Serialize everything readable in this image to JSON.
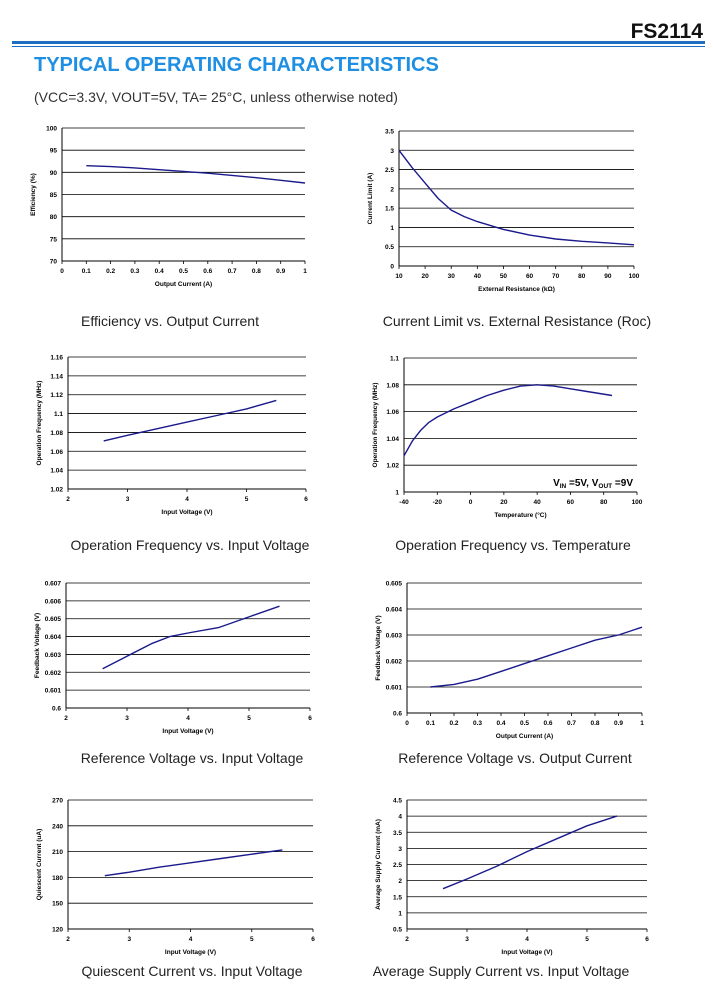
{
  "header": {
    "part_number": "FS2114",
    "section_title": "TYPICAL OPERATING CHARACTERISTICS",
    "conditions": "(VCC=3.3V, VOUT=5V, TA= 25°C, unless otherwise noted)"
  },
  "chart_data": [
    {
      "type": "line",
      "caption": "Efficiency vs. Output Current",
      "xlabel": "Output Current (A)",
      "ylabel": "Efficiency (%)",
      "xlim": [
        0,
        1
      ],
      "ylim": [
        70,
        100
      ],
      "xticks": [
        0,
        0.1,
        0.2,
        0.3,
        0.4,
        0.5,
        0.6,
        0.7,
        0.8,
        0.9,
        1
      ],
      "yticks": [
        70,
        75,
        80,
        85,
        90,
        95,
        100
      ],
      "xtick_labels": [
        "0",
        "0.1",
        "0.2",
        "0.3",
        "0.4",
        "0.5",
        "0.6",
        "0.7",
        "0.8",
        "0.9",
        "1"
      ],
      "ytick_labels": [
        "70",
        "75",
        "80",
        "85",
        "90",
        "95",
        "100"
      ],
      "grid": "horizontal",
      "series": [
        {
          "x": [
            0.1,
            0.2,
            0.3,
            0.4,
            0.5,
            0.6,
            0.7,
            0.8,
            0.9,
            1.0
          ],
          "y": [
            91.5,
            91.3,
            91.0,
            90.6,
            90.2,
            89.8,
            89.3,
            88.8,
            88.2,
            87.6
          ]
        }
      ]
    },
    {
      "type": "line",
      "caption": "Current Limit vs. External Resistance (Roc)",
      "xlabel": "External Resistance (kΩ)",
      "ylabel": "Current Limit (A)",
      "xlim": [
        10,
        100
      ],
      "ylim": [
        0,
        3.5
      ],
      "xticks": [
        10,
        20,
        30,
        40,
        50,
        60,
        70,
        80,
        90,
        100
      ],
      "yticks": [
        0,
        0.5,
        1,
        1.5,
        2,
        2.5,
        3,
        3.5
      ],
      "xtick_labels": [
        "10",
        "20",
        "30",
        "40",
        "50",
        "60",
        "70",
        "80",
        "90",
        "100"
      ],
      "ytick_labels": [
        "0",
        "0.5",
        "1",
        "1.5",
        "2",
        "2.5",
        "3",
        "3.5"
      ],
      "grid": "horizontal",
      "series": [
        {
          "x": [
            10,
            15,
            20,
            25,
            30,
            35,
            40,
            50,
            60,
            70,
            80,
            90,
            100
          ],
          "y": [
            3.0,
            2.55,
            2.15,
            1.75,
            1.45,
            1.28,
            1.15,
            0.95,
            0.8,
            0.7,
            0.64,
            0.6,
            0.55
          ]
        }
      ]
    },
    {
      "type": "line",
      "caption": "Operation Frequency vs. Input Voltage",
      "xlabel": "Input Voltage (V)",
      "ylabel": "Operation Frequency (MHz)",
      "xlim": [
        2,
        6
      ],
      "ylim": [
        1.02,
        1.16
      ],
      "xticks": [
        2,
        3,
        4,
        5,
        6
      ],
      "yticks": [
        1.02,
        1.04,
        1.06,
        1.08,
        1.1,
        1.12,
        1.14,
        1.16
      ],
      "xtick_labels": [
        "2",
        "3",
        "4",
        "5",
        "6"
      ],
      "ytick_labels": [
        "1.02",
        "1.04",
        "1.06",
        "1.08",
        "1.1",
        "1.12",
        "1.14",
        "1.16"
      ],
      "grid": "horizontal",
      "series": [
        {
          "x": [
            2.6,
            3.0,
            3.5,
            4.0,
            4.5,
            5.0,
            5.5
          ],
          "y": [
            1.071,
            1.077,
            1.084,
            1.091,
            1.098,
            1.105,
            1.114
          ]
        }
      ]
    },
    {
      "type": "line",
      "caption": "Operation Frequency vs. Temperature",
      "xlabel": "Temperature (°C)",
      "ylabel": "Operation Frequency (MHz)",
      "xlim": [
        -40,
        100
      ],
      "ylim": [
        1,
        1.1
      ],
      "xticks": [
        -40,
        -20,
        0,
        20,
        40,
        60,
        80,
        100
      ],
      "yticks": [
        1,
        1.02,
        1.04,
        1.06,
        1.08,
        1.1
      ],
      "xtick_labels": [
        "-40",
        "-20",
        "0",
        "20",
        "40",
        "60",
        "80",
        "100"
      ],
      "ytick_labels": [
        "1",
        "1.02",
        "1.04",
        "1.06",
        "1.08",
        "1.1"
      ],
      "grid": "horizontal",
      "annotation": {
        "v_in": "5V",
        "v_out": "9V",
        "sep": ", "
      },
      "series": [
        {
          "x": [
            -40,
            -35,
            -30,
            -25,
            -20,
            -10,
            0,
            10,
            20,
            30,
            40,
            50,
            60,
            70,
            85
          ],
          "y": [
            1.027,
            1.038,
            1.046,
            1.052,
            1.056,
            1.062,
            1.067,
            1.072,
            1.076,
            1.079,
            1.08,
            1.079,
            1.077,
            1.075,
            1.072
          ]
        }
      ]
    },
    {
      "type": "line",
      "caption": "Reference Voltage vs. Input Voltage",
      "xlabel": "Input Voltage (V)",
      "ylabel": "Feedback Voltage (V)",
      "xlim": [
        2,
        6
      ],
      "ylim": [
        0.6,
        0.607
      ],
      "xticks": [
        2,
        3,
        4,
        5,
        6
      ],
      "yticks": [
        0.6,
        0.601,
        0.602,
        0.603,
        0.604,
        0.605,
        0.606,
        0.607
      ],
      "xtick_labels": [
        "2",
        "3",
        "4",
        "5",
        "6"
      ],
      "ytick_labels": [
        "0.6",
        "0.601",
        "0.602",
        "0.603",
        "0.604",
        "0.605",
        "0.606",
        "0.607"
      ],
      "grid": "horizontal",
      "series": [
        {
          "x": [
            2.6,
            3.0,
            3.4,
            3.7,
            4.0,
            4.5,
            5.0,
            5.5
          ],
          "y": [
            0.6022,
            0.6029,
            0.6036,
            0.604,
            0.6042,
            0.6045,
            0.6051,
            0.6057
          ]
        }
      ]
    },
    {
      "type": "line",
      "caption": "Reference Voltage vs. Output Current",
      "xlabel": "Output Current (A)",
      "ylabel": "Feedback Voltage (V)",
      "xlim": [
        0,
        1
      ],
      "ylim": [
        0.6,
        0.605
      ],
      "xticks": [
        0,
        0.1,
        0.2,
        0.3,
        0.4,
        0.5,
        0.6,
        0.7,
        0.8,
        0.9,
        1
      ],
      "yticks": [
        0.6,
        0.601,
        0.602,
        0.603,
        0.604,
        0.605
      ],
      "xtick_labels": [
        "0",
        "0.1",
        "0.2",
        "0.3",
        "0.4",
        "0.5",
        "0.6",
        "0.7",
        "0.8",
        "0.9",
        "1"
      ],
      "ytick_labels": [
        "0.6",
        "0.601",
        "0.602",
        "0.603",
        "0.604",
        "0.605"
      ],
      "grid": "horizontal",
      "series": [
        {
          "x": [
            0.1,
            0.2,
            0.3,
            0.4,
            0.5,
            0.6,
            0.7,
            0.8,
            0.9,
            1.0
          ],
          "y": [
            0.601,
            0.6011,
            0.6013,
            0.6016,
            0.6019,
            0.6022,
            0.6025,
            0.6028,
            0.603,
            0.6033
          ]
        }
      ]
    },
    {
      "type": "line",
      "caption": "Quiescent Current vs. Input Voltage",
      "xlabel": "Input Voltage (V)",
      "ylabel": "Quiescent Current (uA)",
      "xlim": [
        2,
        6
      ],
      "ylim": [
        120,
        270
      ],
      "xticks": [
        2,
        3,
        4,
        5,
        6
      ],
      "yticks": [
        120,
        150,
        180,
        210,
        240,
        270
      ],
      "xtick_labels": [
        "2",
        "3",
        "4",
        "5",
        "6"
      ],
      "ytick_labels": [
        "120",
        "150",
        "180",
        "210",
        "240",
        "270"
      ],
      "grid": "horizontal",
      "series": [
        {
          "x": [
            2.6,
            3.0,
            3.5,
            4.0,
            4.5,
            5.0,
            5.5
          ],
          "y": [
            182,
            186,
            192,
            197,
            202,
            207,
            212
          ]
        }
      ]
    },
    {
      "type": "line",
      "caption": "Average Supply Current vs. Input Voltage",
      "xlabel": "Input Voltage (V)",
      "ylabel": "Average Supply Current (mA)",
      "xlim": [
        2,
        6
      ],
      "ylim": [
        0.5,
        4.5
      ],
      "xticks": [
        2,
        3,
        4,
        5,
        6
      ],
      "yticks": [
        0.5,
        1,
        1.5,
        2,
        2.5,
        3,
        3.5,
        4,
        4.5
      ],
      "xtick_labels": [
        "2",
        "3",
        "4",
        "5",
        "6"
      ],
      "ytick_labels": [
        "0.5",
        "1",
        "1.5",
        "2",
        "2.5",
        "3",
        "3.5",
        "4",
        "4.5"
      ],
      "grid": "horizontal",
      "series": [
        {
          "x": [
            2.6,
            3.0,
            3.5,
            4.0,
            4.5,
            5.0,
            5.5
          ],
          "y": [
            1.75,
            2.05,
            2.45,
            2.9,
            3.3,
            3.7,
            4.0
          ]
        }
      ]
    }
  ]
}
